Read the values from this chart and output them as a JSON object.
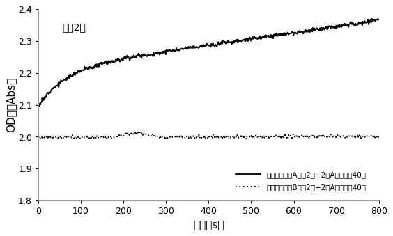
{
  "title_annotation": "稀释2倍",
  "xlabel": "时间（s）",
  "ylabel": "OD值（Abs）",
  "xlim": [
    0,
    800
  ],
  "ylim": [
    1.8,
    2.4
  ],
  "yticks": [
    1.8,
    1.9,
    2.0,
    2.1,
    2.2,
    2.3,
    2.4
  ],
  "xticks": [
    0,
    100,
    200,
    300,
    400,
    500,
    600,
    700,
    800
  ],
  "legend_solid": "生理盐水稀释A抗体2倍+2号A膜球稀释40倍",
  "legend_dotted": "生理盐水稀释B抗体2倍+2号A膜球稀释40倍",
  "line_color": "#000000",
  "bg_color": "#ffffff"
}
